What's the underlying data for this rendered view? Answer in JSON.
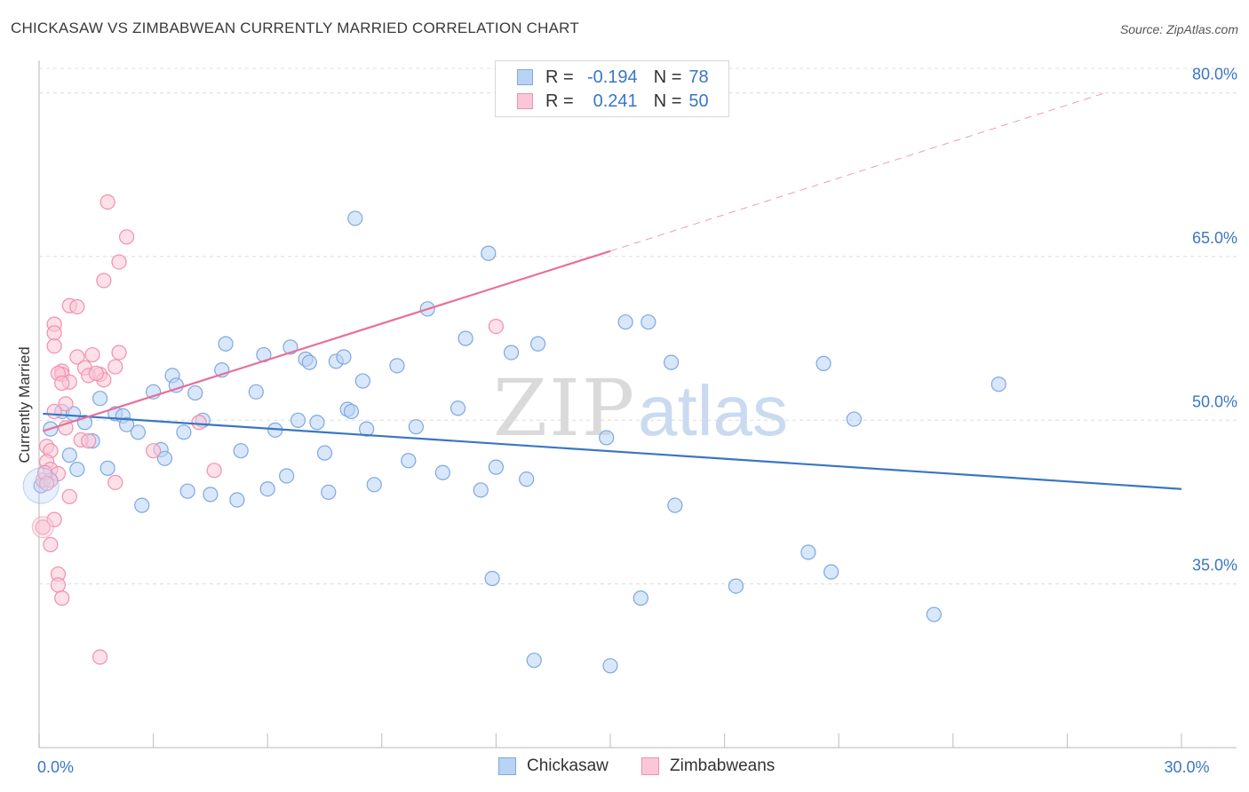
{
  "header": {
    "title": "CHICKASAW VS ZIMBABWEAN CURRENTLY MARRIED CORRELATION CHART",
    "source": "Source: ZipAtlas.com"
  },
  "legend": {
    "r_label": "R =",
    "n_label": "N =",
    "rows": [
      {
        "name": "Chickasaw",
        "r": "-0.194",
        "n": "78",
        "fill": "#b9d3f5",
        "stroke": "#7ea8e0"
      },
      {
        "name": "Zimbabweans",
        "r": "0.241",
        "n": "50",
        "fill": "#fbc7d6",
        "stroke": "#f090ae"
      }
    ]
  },
  "watermark": {
    "zip": "ZIP",
    "atlas": "atlas"
  },
  "chart_data": {
    "type": "scatter",
    "ylabel": "Currently Married",
    "xlim": [
      0,
      30
    ],
    "ylim": [
      20,
      82
    ],
    "x_tick_labels": [
      {
        "value": 0,
        "label": "0.0%"
      },
      {
        "value": 30,
        "label": "30.0%"
      }
    ],
    "x_minor_ticks": [
      0,
      3,
      6,
      9,
      12,
      15,
      18,
      21,
      24,
      27,
      30
    ],
    "y_ticks": [
      {
        "value": 35,
        "label": "35.0%"
      },
      {
        "value": 50,
        "label": "50.0%"
      },
      {
        "value": 65,
        "label": "65.0%"
      },
      {
        "value": 80,
        "label": "80.0%"
      }
    ],
    "grid": "horizontal dashed",
    "series": [
      {
        "name": "Chickasaw",
        "color": "#3a76c4",
        "fill": "#b9d3f5",
        "stroke": "#7ea8e0",
        "points": [
          [
            0.3,
            49.2
          ],
          [
            0.6,
            50.8
          ],
          [
            0.9,
            50.6
          ],
          [
            1.2,
            49.8
          ],
          [
            0.8,
            46.8
          ],
          [
            1.0,
            45.5
          ],
          [
            1.4,
            48.1
          ],
          [
            1.6,
            52.0
          ],
          [
            1.8,
            45.6
          ],
          [
            2.0,
            50.6
          ],
          [
            2.2,
            50.4
          ],
          [
            2.3,
            49.6
          ],
          [
            2.6,
            48.9
          ],
          [
            2.7,
            42.2
          ],
          [
            3.0,
            52.6
          ],
          [
            3.2,
            47.3
          ],
          [
            3.3,
            46.5
          ],
          [
            3.5,
            54.1
          ],
          [
            3.6,
            53.2
          ],
          [
            3.8,
            48.9
          ],
          [
            3.9,
            43.5
          ],
          [
            4.1,
            52.5
          ],
          [
            4.3,
            50.0
          ],
          [
            4.5,
            43.2
          ],
          [
            4.8,
            54.6
          ],
          [
            4.9,
            57.0
          ],
          [
            5.2,
            42.7
          ],
          [
            5.3,
            47.2
          ],
          [
            5.7,
            52.6
          ],
          [
            5.9,
            56.0
          ],
          [
            6.0,
            43.7
          ],
          [
            6.2,
            49.1
          ],
          [
            6.5,
            44.9
          ],
          [
            6.6,
            56.7
          ],
          [
            6.8,
            50.0
          ],
          [
            7.0,
            55.6
          ],
          [
            7.1,
            55.3
          ],
          [
            7.3,
            49.8
          ],
          [
            7.5,
            47.0
          ],
          [
            7.6,
            43.4
          ],
          [
            7.8,
            55.4
          ],
          [
            8.0,
            55.8
          ],
          [
            8.1,
            51.0
          ],
          [
            8.2,
            50.8
          ],
          [
            8.3,
            68.5
          ],
          [
            8.5,
            53.6
          ],
          [
            8.6,
            49.2
          ],
          [
            8.8,
            44.1
          ],
          [
            9.4,
            55.0
          ],
          [
            9.7,
            46.3
          ],
          [
            9.9,
            49.4
          ],
          [
            10.2,
            60.2
          ],
          [
            10.6,
            45.2
          ],
          [
            11.0,
            51.1
          ],
          [
            11.2,
            57.5
          ],
          [
            11.6,
            43.6
          ],
          [
            11.8,
            65.3
          ],
          [
            11.9,
            35.5
          ],
          [
            12.0,
            45.7
          ],
          [
            12.4,
            56.2
          ],
          [
            12.8,
            44.6
          ],
          [
            13.0,
            28.0
          ],
          [
            13.1,
            57.0
          ],
          [
            14.9,
            48.4
          ],
          [
            15.0,
            27.5
          ],
          [
            15.4,
            59.0
          ],
          [
            15.8,
            33.7
          ],
          [
            16.0,
            59.0
          ],
          [
            16.6,
            55.3
          ],
          [
            16.7,
            42.2
          ],
          [
            18.3,
            34.8
          ],
          [
            20.2,
            37.9
          ],
          [
            20.6,
            55.2
          ],
          [
            20.8,
            36.1
          ],
          [
            21.4,
            50.1
          ],
          [
            23.5,
            32.2
          ],
          [
            25.2,
            53.3
          ],
          [
            0.05,
            44.0
          ]
        ]
      },
      {
        "name": "Zimbabweans",
        "color": "#e8709a",
        "fill": "#fbc7d6",
        "stroke": "#f090ae",
        "points": [
          [
            1.8,
            70.0
          ],
          [
            2.3,
            66.8
          ],
          [
            2.1,
            64.5
          ],
          [
            1.7,
            62.8
          ],
          [
            0.8,
            60.5
          ],
          [
            1.0,
            60.4
          ],
          [
            0.4,
            58.8
          ],
          [
            0.4,
            58.0
          ],
          [
            0.4,
            56.8
          ],
          [
            1.4,
            56.0
          ],
          [
            1.0,
            55.8
          ],
          [
            2.1,
            56.2
          ],
          [
            0.6,
            54.5
          ],
          [
            0.6,
            54.2
          ],
          [
            1.2,
            54.8
          ],
          [
            1.3,
            54.1
          ],
          [
            1.6,
            54.2
          ],
          [
            2.0,
            54.9
          ],
          [
            1.7,
            53.7
          ],
          [
            0.8,
            53.5
          ],
          [
            0.7,
            51.5
          ],
          [
            0.4,
            50.8
          ],
          [
            0.7,
            49.3
          ],
          [
            4.2,
            49.8
          ],
          [
            1.1,
            48.2
          ],
          [
            1.3,
            48.1
          ],
          [
            0.2,
            47.6
          ],
          [
            0.3,
            47.2
          ],
          [
            0.2,
            46.2
          ],
          [
            0.3,
            45.5
          ],
          [
            0.5,
            45.1
          ],
          [
            0.1,
            44.5
          ],
          [
            0.3,
            44.5
          ],
          [
            0.15,
            45.2
          ],
          [
            0.2,
            44.2
          ],
          [
            2.0,
            44.3
          ],
          [
            4.6,
            45.4
          ],
          [
            3.0,
            47.2
          ],
          [
            0.8,
            43.0
          ],
          [
            0.4,
            40.9
          ],
          [
            0.1,
            40.2
          ],
          [
            0.3,
            38.6
          ],
          [
            0.5,
            35.9
          ],
          [
            0.5,
            34.9
          ],
          [
            0.6,
            33.7
          ],
          [
            1.6,
            28.3
          ],
          [
            12.0,
            58.6
          ],
          [
            0.5,
            54.3
          ],
          [
            0.6,
            53.4
          ],
          [
            1.5,
            54.3
          ]
        ]
      }
    ],
    "trendlines": [
      {
        "series": "Chickasaw",
        "x": [
          0.1,
          30
        ],
        "y": [
          50.6,
          43.7
        ],
        "style": "solid"
      },
      {
        "series": "Zimbabweans",
        "x": [
          0.1,
          15
        ],
        "y": [
          49.0,
          65.5
        ],
        "style": "solid"
      },
      {
        "series": "Zimbabweans",
        "x": [
          15,
          28
        ],
        "y": [
          65.5,
          80.0
        ],
        "style": "dashed"
      }
    ]
  }
}
